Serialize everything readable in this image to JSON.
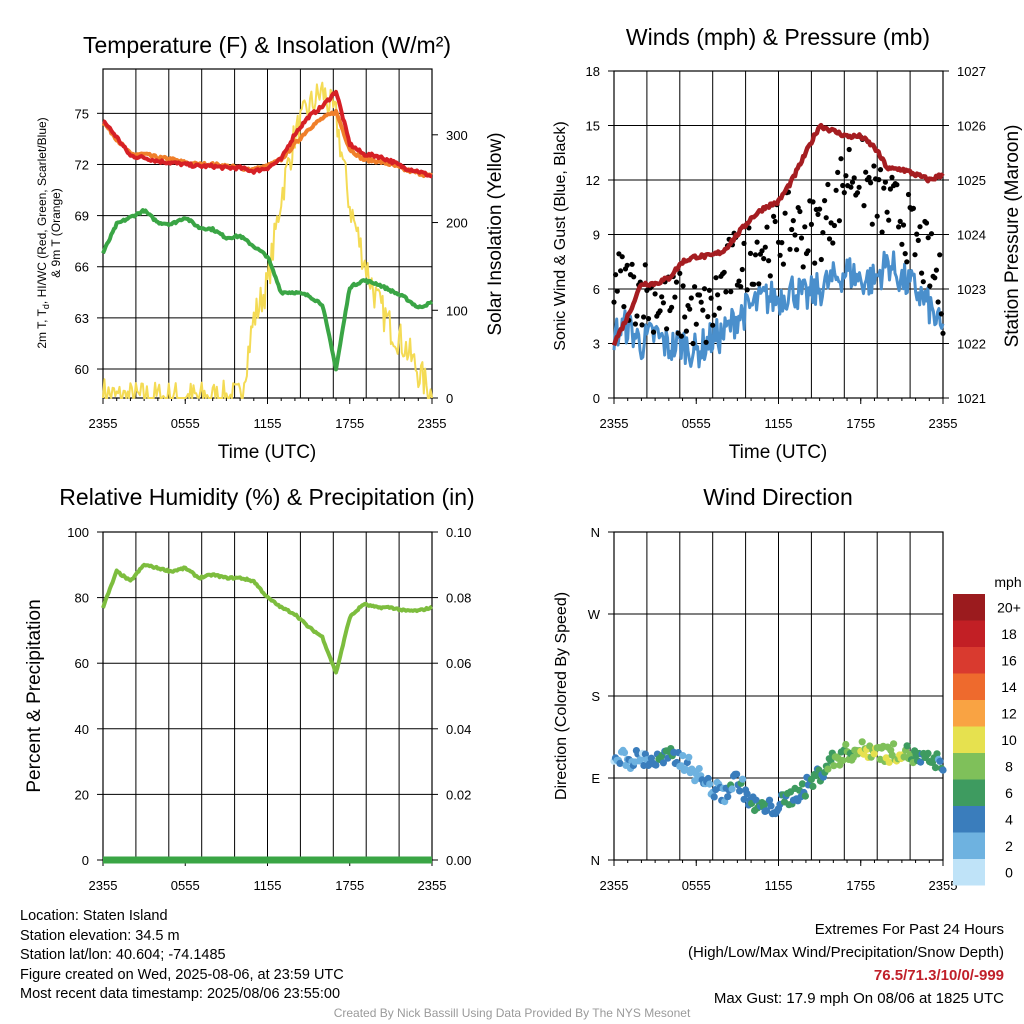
{
  "chart_data": [
    {
      "type": "line",
      "title": "Temperature (F) & Insolation (W/m²)",
      "xlabel": "Time (UTC)",
      "ylabel_left": "2m T, Td, HI/WC (Red, Green, Scarlet/Blue) & 9m T (Orange)",
      "ylabel_left_line1": "2m T, T",
      "ylabel_left_sub": "d",
      "ylabel_left_line1_rest": ", HI/WC (Red, Green, Scarlet/Blue)",
      "ylabel_left_line2": "& 9m T (Orange)",
      "ylabel_right": "Solar Insolation (Yellow)",
      "x_ticks": [
        "2355",
        "0555",
        "1155",
        "1755",
        "2355"
      ],
      "y_left_ticks": [
        "60",
        "63",
        "66",
        "69",
        "72",
        "75"
      ],
      "y_right_ticks": [
        "0",
        "100",
        "200",
        "300"
      ],
      "ylim_left": [
        58.3,
        77.6
      ],
      "ylim_right": [
        0,
        375
      ],
      "x_hours": [
        0,
        1,
        2,
        3,
        4,
        5,
        6,
        7,
        8,
        9,
        10,
        11,
        12,
        13,
        14,
        15,
        16,
        17,
        18,
        19,
        20,
        21,
        22,
        23,
        24
      ],
      "series": [
        {
          "name": "2m T",
          "color": "#d62026",
          "values": [
            74.6,
            73.6,
            72.5,
            72.4,
            72.2,
            72.1,
            72.0,
            71.9,
            71.9,
            71.8,
            71.8,
            71.6,
            71.8,
            72.3,
            73.8,
            74.8,
            75.4,
            76.3,
            73.2,
            72.6,
            72.5,
            72.2,
            71.8,
            71.6,
            71.3
          ]
        },
        {
          "name": "9m T",
          "color": "#f07f2a",
          "values": [
            74.5,
            73.5,
            72.6,
            72.6,
            72.4,
            72.3,
            72.1,
            72.0,
            72.0,
            71.9,
            71.8,
            71.7,
            71.9,
            72.3,
            73.2,
            74.1,
            74.7,
            75.1,
            72.9,
            72.3,
            72.2,
            72.0,
            71.7,
            71.5,
            71.3
          ]
        },
        {
          "name": "Td",
          "color": "#3aa545",
          "values": [
            66.8,
            68.5,
            68.9,
            69.3,
            68.6,
            68.5,
            68.9,
            68.3,
            68.2,
            67.7,
            67.8,
            67.2,
            66.6,
            64.5,
            64.5,
            64.3,
            63.8,
            60.0,
            64.8,
            65.2,
            65.0,
            64.6,
            64.2,
            63.6,
            63.9
          ]
        },
        {
          "name": "Solar",
          "color": "#f4db55",
          "axis": "right",
          "values": [
            5,
            0,
            0,
            0,
            0,
            0,
            0,
            0,
            0,
            0,
            0,
            90,
            130,
            230,
            300,
            330,
            350,
            320,
            220,
            160,
            110,
            80,
            60,
            30,
            3
          ]
        }
      ]
    },
    {
      "type": "line",
      "title": "Winds (mph) & Pressure (mb)",
      "xlabel": "Time (UTC)",
      "ylabel_left": "Sonic Wind & Gust (Blue, Black)",
      "ylabel_right": "Station Pressure (Maroon)",
      "x_ticks": [
        "2355",
        "0555",
        "1155",
        "1755",
        "2355"
      ],
      "y_left_ticks": [
        "0",
        "3",
        "6",
        "9",
        "12",
        "15",
        "18"
      ],
      "y_right_ticks": [
        "1021",
        "1022",
        "1023",
        "1024",
        "1025",
        "1026",
        "1027"
      ],
      "ylim_left": [
        0,
        18
      ],
      "ylim_right": [
        1021,
        1027
      ],
      "x_hours": [
        0,
        1,
        2,
        3,
        4,
        5,
        6,
        7,
        8,
        9,
        10,
        11,
        12,
        13,
        14,
        15,
        16,
        17,
        18,
        19,
        20,
        21,
        22,
        23,
        24
      ],
      "series": [
        {
          "name": "Sonic Wind",
          "color": "#4a8fcc",
          "values": [
            3.5,
            4.0,
            3.0,
            3.5,
            2.8,
            3.0,
            2.5,
            3.2,
            3.5,
            4.5,
            5.0,
            5.5,
            5.5,
            6.0,
            5.5,
            6.0,
            6.5,
            7.0,
            6.5,
            6.5,
            7.5,
            6.5,
            6.0,
            5.0,
            3.5
          ]
        },
        {
          "name": "Gust",
          "color": "#000000",
          "values": [
            6.5,
            6.0,
            6.0,
            5.5,
            5.0,
            5.0,
            4.5,
            4.5,
            6.5,
            7.5,
            8.0,
            8.5,
            9.0,
            9.5,
            9.0,
            9.5,
            10.5,
            12.5,
            12.5,
            11.0,
            10.5,
            10.0,
            8.5,
            7.5,
            5.5
          ]
        },
        {
          "name": "Station Pressure",
          "color": "#a51d21",
          "axis": "right",
          "values": [
            1022.0,
            1022.5,
            1023.1,
            1023.1,
            1023.2,
            1023.5,
            1023.6,
            1023.6,
            1023.7,
            1024.0,
            1024.3,
            1024.5,
            1024.6,
            1025.0,
            1025.5,
            1026.0,
            1025.9,
            1025.8,
            1025.8,
            1025.6,
            1025.2,
            1025.2,
            1025.1,
            1025.0,
            1025.1
          ]
        }
      ]
    },
    {
      "type": "line",
      "title": "Relative Humidity (%) & Precipitation (in)",
      "ylabel_left": "Percent & Precipitation",
      "x_ticks": [
        "2355",
        "0555",
        "1155",
        "1755",
        "2355"
      ],
      "y_left_ticks": [
        "0",
        "20",
        "40",
        "60",
        "80",
        "100"
      ],
      "y_right_ticks": [
        "0.00",
        "0.02",
        "0.04",
        "0.06",
        "0.08",
        "0.10"
      ],
      "ylim_left": [
        0,
        100
      ],
      "ylim_right": [
        0,
        0.1
      ],
      "x_hours": [
        0,
        1,
        2,
        3,
        4,
        5,
        6,
        7,
        8,
        9,
        10,
        11,
        12,
        13,
        14,
        15,
        16,
        17,
        18,
        19,
        20,
        21,
        22,
        23,
        24
      ],
      "series": [
        {
          "name": "Relative Humidity",
          "color": "#7dbd3e",
          "values": [
            77,
            88,
            85,
            90,
            89,
            88,
            89,
            86,
            87,
            86,
            86,
            85,
            80,
            77,
            75,
            71,
            68,
            57,
            74,
            78,
            77,
            77,
            76,
            76,
            77
          ]
        },
        {
          "name": "Precipitation",
          "color": "#3aa545",
          "axis": "right",
          "values": [
            0,
            0,
            0,
            0,
            0,
            0,
            0,
            0,
            0,
            0,
            0,
            0,
            0,
            0,
            0,
            0,
            0,
            0,
            0,
            0,
            0,
            0,
            0,
            0,
            0
          ]
        }
      ]
    },
    {
      "type": "scatter",
      "title": "Wind Direction",
      "ylabel_left": "Direction (Colored By Speed)",
      "x_ticks": [
        "2355",
        "0555",
        "1155",
        "1755",
        "2355"
      ],
      "y_left_ticks": [
        "N",
        "E",
        "S",
        "W",
        "N"
      ],
      "ylim": [
        0,
        360
      ],
      "legend_title": "mph",
      "legend_labels": [
        "20+",
        "18",
        "16",
        "14",
        "12",
        "10",
        "8",
        "6",
        "4",
        "2",
        "0"
      ],
      "legend_colors": [
        "#9b1b1e",
        "#c21f25",
        "#d93a2f",
        "#ee6a2d",
        "#f9a343",
        "#e6e14f",
        "#7fc05a",
        "#3e9b60",
        "#3a7dbc",
        "#6eb2e0",
        "#bfe3f8"
      ],
      "x_hours": [
        0,
        1,
        2,
        3,
        4,
        5,
        6,
        7,
        8,
        9,
        10,
        11,
        12,
        13,
        14,
        15,
        16,
        17,
        18,
        19,
        20,
        21,
        22,
        23,
        24
      ],
      "direction_deg": [
        115,
        110,
        112,
        108,
        113,
        110,
        95,
        80,
        72,
        90,
        62,
        55,
        60,
        70,
        80,
        95,
        110,
        118,
        120,
        122,
        116,
        120,
        112,
        108,
        108
      ],
      "speed_mph": [
        2,
        3,
        2,
        4,
        6,
        3,
        2,
        3,
        4,
        4,
        4,
        5,
        4,
        6,
        5,
        6,
        7,
        8,
        8,
        9,
        8,
        9,
        6,
        5,
        4
      ]
    }
  ],
  "footer": {
    "location": "Location: Staten Island",
    "elevation": "Station elevation: 34.5 m",
    "latlon": "Station lat/lon: 40.604; -74.1485",
    "created": "Figure created on Wed, 2025-08-06, at 23:59 UTC",
    "timestamp": "Most recent data timestamp: 2025/08/06 23:55:00",
    "extremes_title": "Extremes For Past 24 Hours",
    "extremes_subtitle": "(High/Low/Max Wind/Precipitation/Snow Depth)",
    "extremes_values": "76.5/71.3/10/0/-999",
    "max_gust": "Max Gust: 17.9 mph On 08/06 at 1825 UTC",
    "credit": "Created By Nick Bassill Using Data Provided By The NYS Mesonet"
  }
}
